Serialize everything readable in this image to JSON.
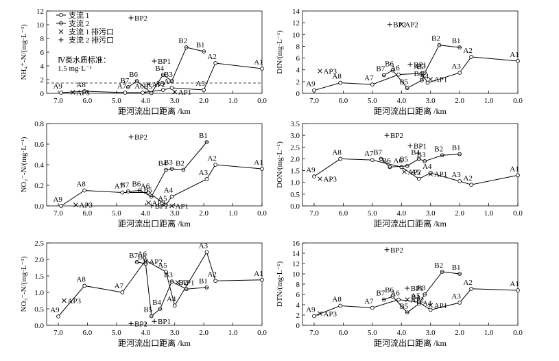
{
  "figure": {
    "legend": {
      "tributary1": "支流 1",
      "tributary2": "支流 2",
      "outlet1": "支流 1 排污口",
      "outlet2": "支流 2 排污口"
    },
    "xlabel": "距河流出口距离 /km",
    "standard_note_line1": "Ⅳ类水质标准：",
    "standard_note_line2": "1.5 mg·L⁻¹"
  },
  "chart_data": [
    {
      "id": "nh4",
      "type": "line",
      "ylabel": "NH₄⁺-N/(mg·L⁻¹)",
      "ylim": [
        0,
        12
      ],
      "yticks": [
        0,
        2,
        4,
        6,
        8,
        10,
        12
      ],
      "ytick_fmt": 0,
      "xlim": [
        7.4,
        0
      ],
      "xticks": [
        7,
        6,
        5,
        4,
        3,
        2,
        1,
        0
      ],
      "xtick_fmt": 1,
      "legend": true,
      "series": [
        {
          "name": "支流 1",
          "points": [
            {
              "label": "A9",
              "x": 6.9,
              "y": 0.1
            },
            {
              "label": "A8",
              "x": 6.1,
              "y": 0.3
            },
            {
              "label": "A7",
              "x": 4.7,
              "y": 0.1
            },
            {
              "label": "A6",
              "x": 4.1,
              "y": 0.1
            },
            {
              "label": "A5",
              "x": 3.4,
              "y": 0.5
            },
            {
              "label": "A4",
              "x": 3.1,
              "y": 0.8
            },
            {
              "label": "A3",
              "x": 2.0,
              "y": 0.5
            },
            {
              "label": "A2",
              "x": 1.6,
              "y": 4.4
            },
            {
              "label": "A1",
              "x": 0.0,
              "y": 3.6
            }
          ]
        },
        {
          "name": "支流 2",
          "points": [
            {
              "label": "B7",
              "x": 4.6,
              "y": 0.9
            },
            {
              "label": "B6",
              "x": 4.3,
              "y": 1.8
            },
            {
              "label": "B5",
              "x": 3.8,
              "y": 0.05
            },
            {
              "label": "B4",
              "x": 3.4,
              "y": 2.7
            },
            {
              "label": "B3",
              "x": 3.1,
              "y": 1.8
            },
            {
              "label": "B2",
              "x": 2.6,
              "y": 6.7
            },
            {
              "label": "B1",
              "x": 2.0,
              "y": 6.1
            }
          ]
        }
      ],
      "outlets": [
        {
          "label": "AP3",
          "x": 6.5,
          "y": 0.15,
          "kind": "outlet1"
        },
        {
          "label": "AP2",
          "x": 3.9,
          "y": 1.3,
          "kind": "outlet1"
        },
        {
          "label": "AP1",
          "x": 3.0,
          "y": 0.2,
          "kind": "outlet1"
        },
        {
          "label": "BP2",
          "x": 4.5,
          "y": 11.0,
          "kind": "outlet2"
        },
        {
          "label": "BP1",
          "x": 3.7,
          "y": 4.7,
          "kind": "outlet2"
        }
      ],
      "standard_line": 1.5
    },
    {
      "id": "din",
      "type": "line",
      "ylabel": "DIN/(mg·L⁻¹)",
      "ylim": [
        0,
        14
      ],
      "yticks": [
        0,
        2,
        4,
        6,
        8,
        10,
        12,
        14
      ],
      "ytick_fmt": 0,
      "xlim": [
        7.4,
        0
      ],
      "xticks": [
        7,
        6,
        5,
        4,
        3,
        2,
        1,
        0
      ],
      "xtick_fmt": 1,
      "series": [
        {
          "name": "支流 1",
          "points": [
            {
              "label": "A9",
              "x": 7.0,
              "y": 0.5
            },
            {
              "label": "A8",
              "x": 6.1,
              "y": 1.8
            },
            {
              "label": "A7",
              "x": 5.0,
              "y": 1.5
            },
            {
              "label": "A6",
              "x": 4.1,
              "y": 3.2
            },
            {
              "label": "A5",
              "x": 3.3,
              "y": 3.4
            },
            {
              "label": "A4",
              "x": 3.1,
              "y": 1.8
            },
            {
              "label": "A3",
              "x": 2.0,
              "y": 3.5
            },
            {
              "label": "A2",
              "x": 1.6,
              "y": 6.2
            },
            {
              "label": "A1",
              "x": 0.0,
              "y": 5.5
            }
          ]
        },
        {
          "name": "支流 2",
          "points": [
            {
              "label": "B7",
              "x": 4.6,
              "y": 3.1
            },
            {
              "label": "B6",
              "x": 4.3,
              "y": 3.9
            },
            {
              "label": "B5",
              "x": 3.8,
              "y": 0.9
            },
            {
              "label": "B4",
              "x": 3.3,
              "y": 2.2
            },
            {
              "label": "B3",
              "x": 3.2,
              "y": 3.5
            },
            {
              "label": "B2",
              "x": 2.7,
              "y": 8.2
            },
            {
              "label": "B1",
              "x": 2.0,
              "y": 7.8
            }
          ]
        }
      ],
      "outlets": [
        {
          "label": "AP3",
          "x": 6.8,
          "y": 3.8,
          "kind": "outlet1"
        },
        {
          "label": "AP2",
          "x": 4.0,
          "y": 11.7,
          "kind": "outlet1"
        },
        {
          "label": "AP1",
          "x": 3.0,
          "y": 2.4,
          "kind": "outlet1"
        },
        {
          "label": "BP2",
          "x": 4.4,
          "y": 11.7,
          "kind": "outlet2"
        },
        {
          "label": "BP1",
          "x": 3.7,
          "y": 4.9,
          "kind": "outlet2"
        }
      ]
    },
    {
      "id": "no2",
      "type": "line",
      "ylabel": "NO₂⁻-N/(mg·L⁻¹)",
      "ylim": [
        0,
        0.8
      ],
      "yticks": [
        0,
        0.2,
        0.4,
        0.6,
        0.8
      ],
      "ytick_fmt": 1,
      "xlim": [
        7.4,
        0
      ],
      "xticks": [
        7,
        6,
        5,
        4,
        3,
        2,
        1,
        0
      ],
      "xtick_fmt": 1,
      "series": [
        {
          "name": "支流 1",
          "points": [
            {
              "label": "A9",
              "x": 6.9,
              "y": 0.0
            },
            {
              "label": "A8",
              "x": 6.1,
              "y": 0.15
            },
            {
              "label": "A7",
              "x": 4.8,
              "y": 0.13
            },
            {
              "label": "A6",
              "x": 3.9,
              "y": 0.13
            },
            {
              "label": "A5",
              "x": 3.3,
              "y": 0.01
            },
            {
              "label": "A4",
              "x": 3.1,
              "y": 0.09
            },
            {
              "label": "A3",
              "x": 1.9,
              "y": 0.26
            },
            {
              "label": "A2",
              "x": 1.6,
              "y": 0.4
            },
            {
              "label": "A1",
              "x": 0.0,
              "y": 0.36
            }
          ]
        },
        {
          "name": "支流 2",
          "points": [
            {
              "label": "B7",
              "x": 4.6,
              "y": 0.14
            },
            {
              "label": "B6",
              "x": 4.2,
              "y": 0.15
            },
            {
              "label": "B5",
              "x": 3.8,
              "y": 0.09
            },
            {
              "label": "B4",
              "x": 3.3,
              "y": 0.35
            },
            {
              "label": "B3",
              "x": 3.1,
              "y": 0.36
            },
            {
              "label": "B2",
              "x": 2.7,
              "y": 0.35
            },
            {
              "label": "B1",
              "x": 1.9,
              "y": 0.62
            }
          ]
        }
      ],
      "outlets": [
        {
          "label": "AP3",
          "x": 6.4,
          "y": 0.01,
          "kind": "outlet1"
        },
        {
          "label": "AP2",
          "x": 3.9,
          "y": 0.03,
          "kind": "outlet1"
        },
        {
          "label": "AP1",
          "x": 3.1,
          "y": 0.0,
          "kind": "outlet1"
        },
        {
          "label": "BP2",
          "x": 4.5,
          "y": 0.67,
          "kind": "outlet2"
        },
        {
          "label": "BP1",
          "x": 3.8,
          "y": 0.0,
          "kind": "outlet2"
        }
      ]
    },
    {
      "id": "don",
      "type": "line",
      "ylabel": "DON/(mg·L⁻¹)",
      "ylim": [
        0,
        3.5
      ],
      "yticks": [
        0,
        0.5,
        1.0,
        1.5,
        2.0,
        2.5,
        3.0,
        3.5
      ],
      "ytick_fmt": 1,
      "xlim": [
        7.4,
        0
      ],
      "xticks": [
        7,
        6,
        5,
        4,
        3,
        2,
        1,
        0
      ],
      "xtick_fmt": 1,
      "series": [
        {
          "name": "支流 1",
          "points": [
            {
              "label": "A9",
              "x": 7.0,
              "y": 1.25
            },
            {
              "label": "A8",
              "x": 6.1,
              "y": 2.0
            },
            {
              "label": "A7",
              "x": 5.0,
              "y": 1.95
            },
            {
              "label": "A6",
              "x": 4.0,
              "y": 1.65
            },
            {
              "label": "A5",
              "x": 3.4,
              "y": 1.15
            },
            {
              "label": "A4",
              "x": 3.0,
              "y": 1.4
            },
            {
              "label": "A3",
              "x": 2.0,
              "y": 1.05
            },
            {
              "label": "A2",
              "x": 1.6,
              "y": 0.9
            },
            {
              "label": "A1",
              "x": 0.0,
              "y": 1.3
            }
          ]
        },
        {
          "name": "支流 2",
          "points": [
            {
              "label": "B7",
              "x": 4.7,
              "y": 2.0
            },
            {
              "label": "B6",
              "x": 4.4,
              "y": 1.65
            },
            {
              "label": "B5",
              "x": 3.8,
              "y": 1.7
            },
            {
              "label": "B4",
              "x": 3.4,
              "y": 2.0
            },
            {
              "label": "B3",
              "x": 3.2,
              "y": 1.9
            },
            {
              "label": "B2",
              "x": 2.6,
              "y": 2.15
            },
            {
              "label": "B1",
              "x": 2.0,
              "y": 2.2
            }
          ]
        }
      ],
      "outlets": [
        {
          "label": "AP3",
          "x": 6.8,
          "y": 1.15,
          "kind": "outlet1"
        },
        {
          "label": "AP2",
          "x": 3.9,
          "y": 1.45,
          "kind": "outlet1"
        },
        {
          "label": "AP1",
          "x": 3.0,
          "y": 1.35,
          "kind": "outlet1"
        },
        {
          "label": "BP2",
          "x": 4.5,
          "y": 3.0,
          "kind": "outlet2"
        },
        {
          "label": "BP1",
          "x": 3.7,
          "y": 2.55,
          "kind": "outlet2"
        }
      ]
    },
    {
      "id": "no3",
      "type": "line",
      "ylabel": "NO₃⁻-N/(mg·L⁻¹)",
      "ylim": [
        0,
        2.5
      ],
      "yticks": [
        0,
        0.5,
        1.0,
        1.5,
        2.0,
        2.5
      ],
      "ytick_fmt": 1,
      "xlim": [
        7.4,
        0
      ],
      "xticks": [
        7,
        6,
        5,
        4,
        3,
        2,
        1,
        0
      ],
      "xtick_fmt": 1,
      "series": [
        {
          "name": "支流 1",
          "points": [
            {
              "label": "A9",
              "x": 7.0,
              "y": 0.27
            },
            {
              "label": "A8",
              "x": 6.1,
              "y": 1.2
            },
            {
              "label": "A7",
              "x": 4.8,
              "y": 1.0
            },
            {
              "label": "A6",
              "x": 4.0,
              "y": 1.97
            },
            {
              "label": "A5",
              "x": 3.3,
              "y": 1.62
            },
            {
              "label": "A4",
              "x": 3.0,
              "y": 0.6
            },
            {
              "label": "A3",
              "x": 1.9,
              "y": 2.22
            },
            {
              "label": "A2",
              "x": 1.6,
              "y": 1.35
            },
            {
              "label": "A1",
              "x": 0.0,
              "y": 1.38
            }
          ]
        },
        {
          "name": "支流 2",
          "points": [
            {
              "label": "B7",
              "x": 4.3,
              "y": 1.92
            },
            {
              "label": "B6",
              "x": 4.0,
              "y": 1.87
            },
            {
              "label": "B5",
              "x": 3.8,
              "y": 0.28
            },
            {
              "label": "B4",
              "x": 3.5,
              "y": 0.5
            },
            {
              "label": "B3",
              "x": 3.1,
              "y": 1.33
            },
            {
              "label": "B2",
              "x": 2.6,
              "y": 1.1
            },
            {
              "label": "B1",
              "x": 1.9,
              "y": 1.15
            }
          ]
        }
      ],
      "outlets": [
        {
          "label": "AP3",
          "x": 6.8,
          "y": 0.75,
          "kind": "outlet1"
        },
        {
          "label": "AP2",
          "x": 4.0,
          "y": 1.94,
          "kind": "outlet1"
        },
        {
          "label": "AP1",
          "x": 2.9,
          "y": 1.3,
          "kind": "outlet1"
        },
        {
          "label": "BP2",
          "x": 4.5,
          "y": 0.05,
          "kind": "outlet2"
        },
        {
          "label": "BP1",
          "x": 3.7,
          "y": 0.12,
          "kind": "outlet2"
        }
      ]
    },
    {
      "id": "dtn",
      "type": "line",
      "ylabel": "DTN/(mg·L⁻¹)",
      "ylim": [
        0,
        16
      ],
      "yticks": [
        0,
        2,
        4,
        6,
        8,
        10,
        12,
        14,
        16
      ],
      "ytick_fmt": 0,
      "xlim": [
        7.4,
        0
      ],
      "xticks": [
        7,
        6,
        5,
        4,
        3,
        2,
        1,
        0
      ],
      "xtick_fmt": 1,
      "series": [
        {
          "name": "支流 1",
          "points": [
            {
              "label": "A9",
              "x": 7.0,
              "y": 1.8
            },
            {
              "label": "A8",
              "x": 6.1,
              "y": 3.8
            },
            {
              "label": "A7",
              "x": 5.0,
              "y": 3.4
            },
            {
              "label": "A6",
              "x": 4.1,
              "y": 5.0
            },
            {
              "label": "A5",
              "x": 3.4,
              "y": 4.5
            },
            {
              "label": "A4",
              "x": 3.0,
              "y": 3.0
            },
            {
              "label": "A3",
              "x": 2.0,
              "y": 4.4
            },
            {
              "label": "A2",
              "x": 1.6,
              "y": 7.1
            },
            {
              "label": "A1",
              "x": 0.0,
              "y": 6.8
            }
          ]
        },
        {
          "name": "支流 2",
          "points": [
            {
              "label": "B7",
              "x": 4.6,
              "y": 5.0
            },
            {
              "label": "B6",
              "x": 4.3,
              "y": 5.6
            },
            {
              "label": "B5",
              "x": 3.8,
              "y": 2.5
            },
            {
              "label": "B4",
              "x": 3.4,
              "y": 4.2
            },
            {
              "label": "B3",
              "x": 3.2,
              "y": 6.0
            },
            {
              "label": "B2",
              "x": 2.6,
              "y": 10.4
            },
            {
              "label": "B1",
              "x": 2.0,
              "y": 10.0
            }
          ]
        }
      ],
      "outlets": [
        {
          "label": "AP3",
          "x": 6.8,
          "y": 2.3,
          "kind": "outlet1"
        },
        {
          "label": "AP2",
          "x": 3.8,
          "y": 5.0,
          "kind": "outlet1"
        },
        {
          "label": "AP1",
          "x": 3.0,
          "y": 3.9,
          "kind": "outlet1"
        },
        {
          "label": "BP2",
          "x": 4.5,
          "y": 14.7,
          "kind": "outlet2"
        },
        {
          "label": "BP1",
          "x": 3.8,
          "y": 7.2,
          "kind": "outlet2"
        }
      ]
    }
  ]
}
